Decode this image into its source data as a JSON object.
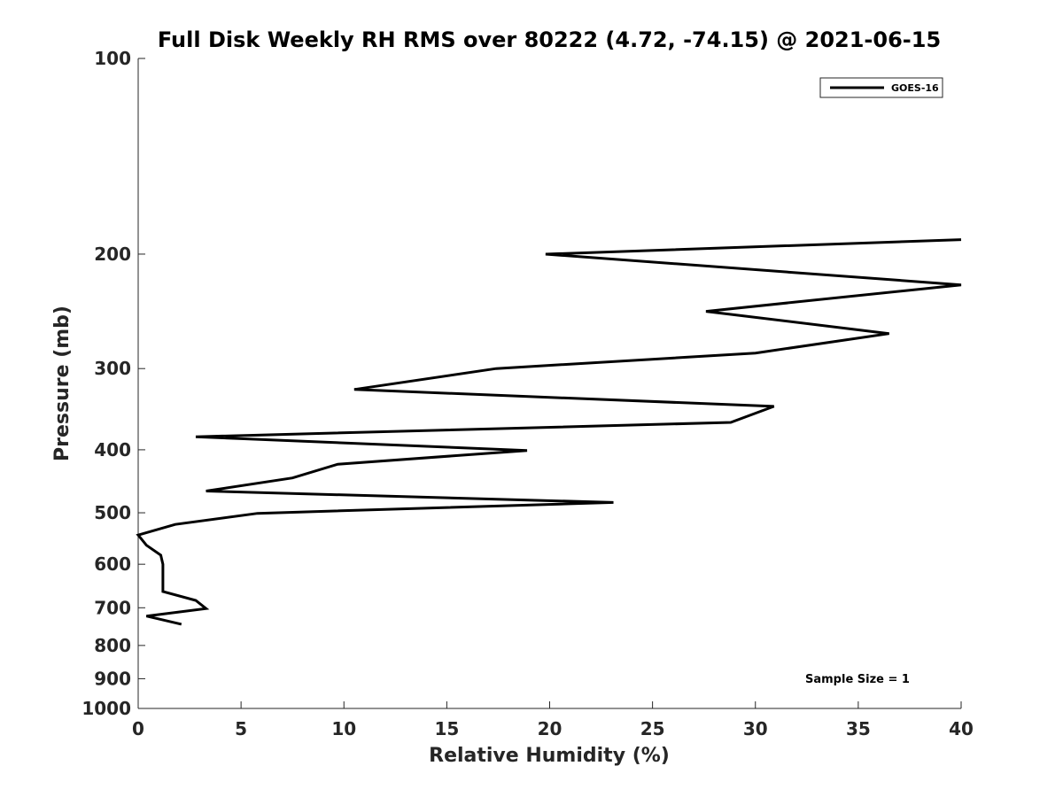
{
  "chart_data": {
    "type": "line",
    "title": "Full Disk Weekly RH RMS over 80222 (4.72, -74.15) @ 2021-06-15",
    "xlabel": "Relative Humidity (%)",
    "ylabel": "Pressure (mb)",
    "xlim": [
      0,
      40
    ],
    "ylim": [
      100,
      1000
    ],
    "yscale": "log",
    "y_reversed": true,
    "xticks": [
      0,
      5,
      10,
      15,
      20,
      25,
      30,
      35,
      40
    ],
    "xtick_labels": [
      "0",
      "5",
      "10",
      "15",
      "20",
      "25",
      "30",
      "35",
      "40"
    ],
    "yticks": [
      100,
      200,
      300,
      400,
      500,
      600,
      700,
      800,
      900,
      1000
    ],
    "ytick_labels": [
      "100",
      "200",
      "300",
      "400",
      "500",
      "600",
      "700",
      "800",
      "900",
      "1000"
    ],
    "grid": false,
    "legend_position": "top-right",
    "annotation": "Sample Size = 1",
    "series": [
      {
        "name": "GOES-16",
        "color": "#000000",
        "points": [
          {
            "x": 40.0,
            "y": 190
          },
          {
            "x": 19.8,
            "y": 200
          },
          {
            "x": 40.0,
            "y": 223
          },
          {
            "x": 27.6,
            "y": 245
          },
          {
            "x": 36.5,
            "y": 265
          },
          {
            "x": 30.0,
            "y": 284
          },
          {
            "x": 17.4,
            "y": 300
          },
          {
            "x": 10.5,
            "y": 323
          },
          {
            "x": 30.9,
            "y": 343
          },
          {
            "x": 28.8,
            "y": 363
          },
          {
            "x": 2.8,
            "y": 382
          },
          {
            "x": 18.9,
            "y": 401
          },
          {
            "x": 9.7,
            "y": 421
          },
          {
            "x": 7.5,
            "y": 442
          },
          {
            "x": 3.3,
            "y": 463
          },
          {
            "x": 23.1,
            "y": 482
          },
          {
            "x": 5.8,
            "y": 501
          },
          {
            "x": 1.8,
            "y": 521
          },
          {
            "x": 0.0,
            "y": 541
          },
          {
            "x": 0.4,
            "y": 561
          },
          {
            "x": 1.1,
            "y": 581
          },
          {
            "x": 1.2,
            "y": 600
          },
          {
            "x": 1.2,
            "y": 622
          },
          {
            "x": 1.2,
            "y": 661
          },
          {
            "x": 2.8,
            "y": 682
          },
          {
            "x": 3.3,
            "y": 702
          },
          {
            "x": 0.4,
            "y": 721
          },
          {
            "x": 2.1,
            "y": 742
          }
        ]
      }
    ]
  }
}
